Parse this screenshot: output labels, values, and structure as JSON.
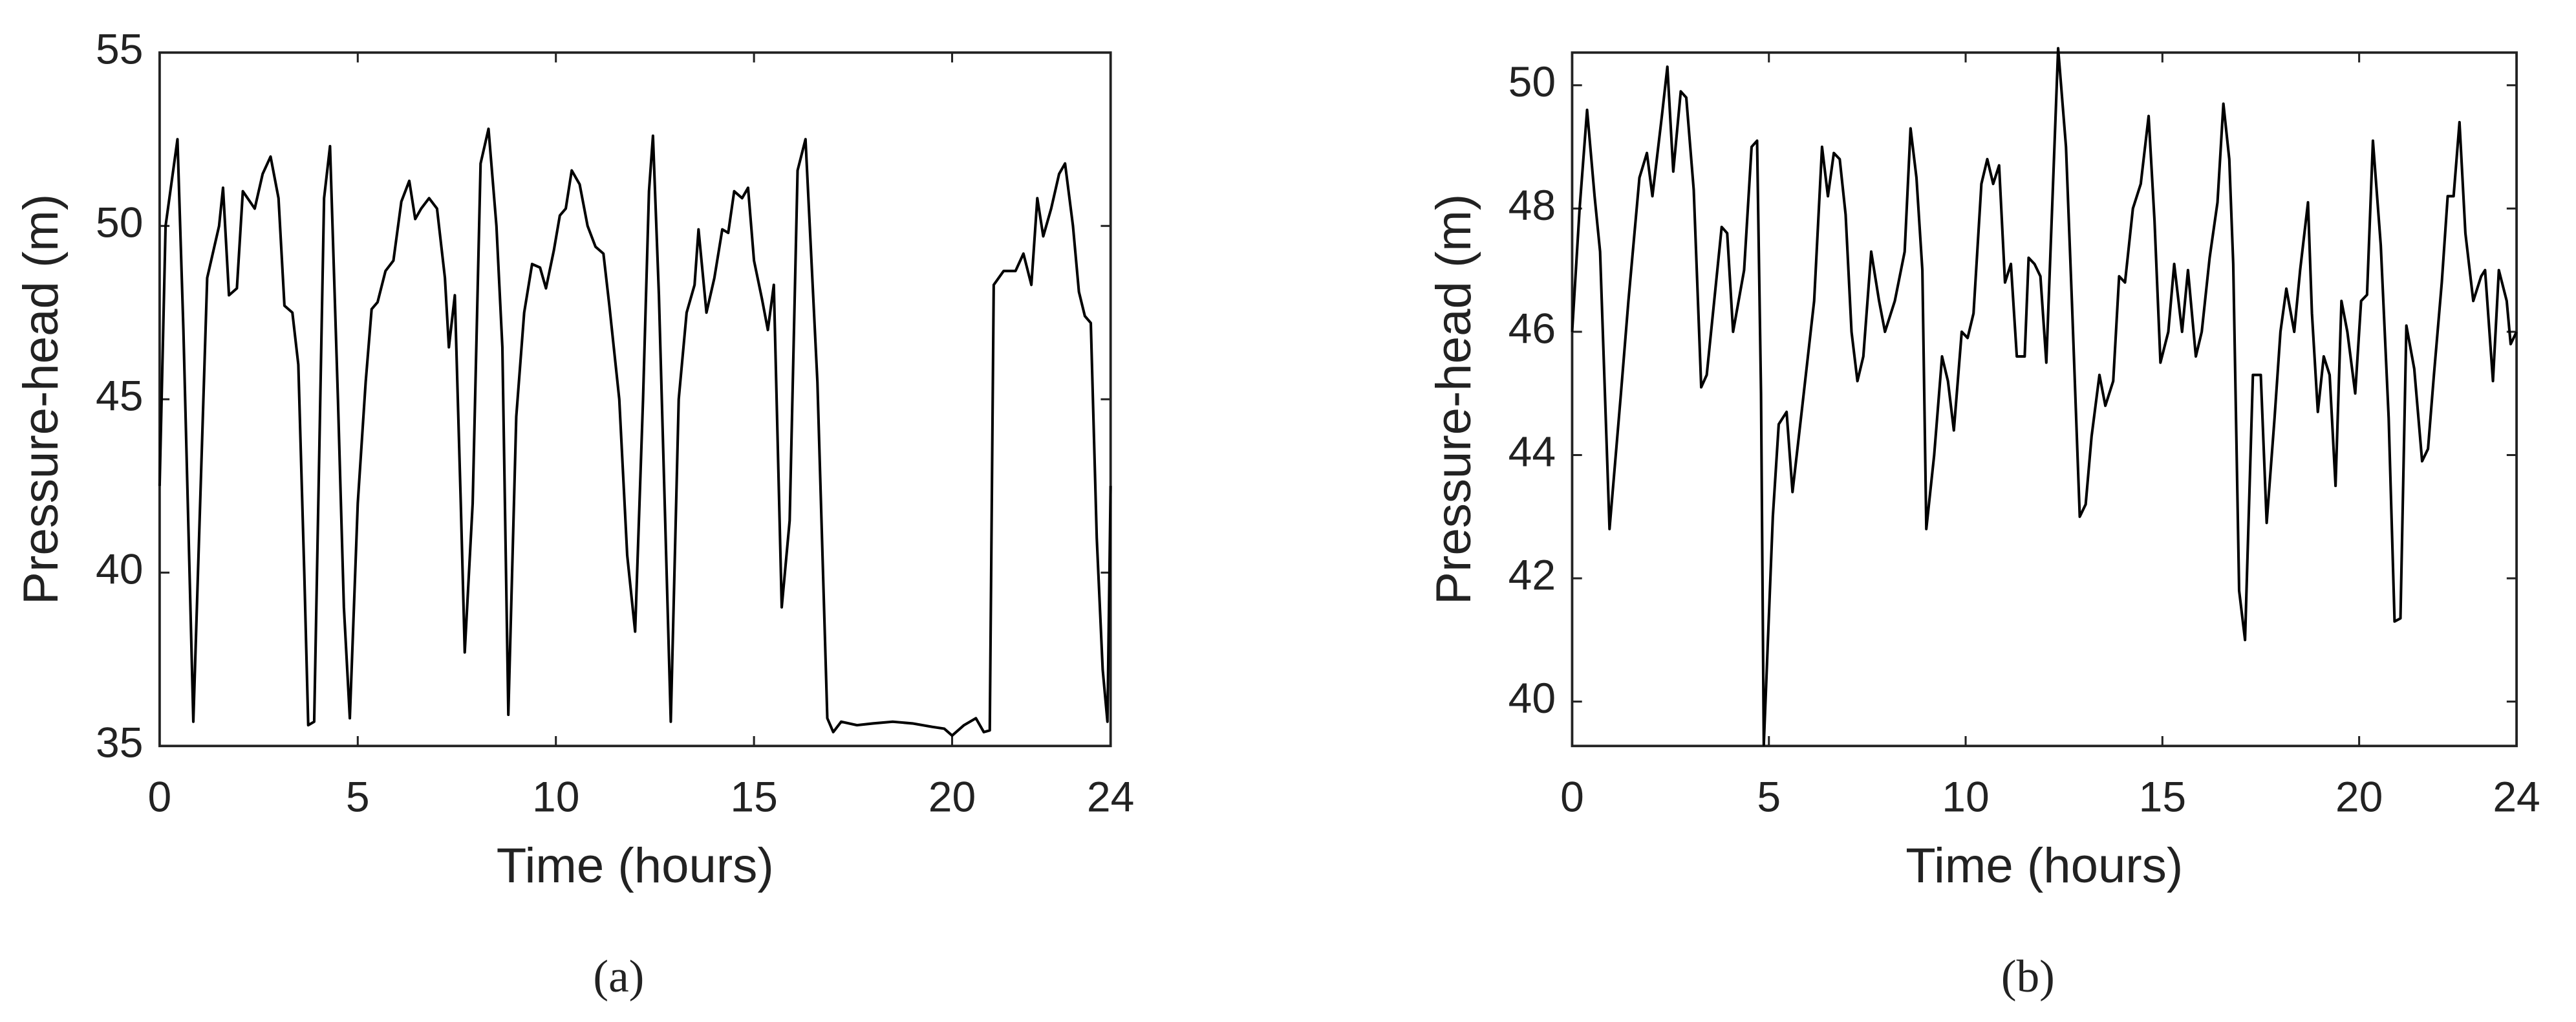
{
  "chart_data": [
    {
      "type": "line",
      "caption": "(a)",
      "xlabel": "Time (hours)",
      "ylabel": "Pressure-head (m)",
      "color": "#000000",
      "xlim": [
        0,
        24
      ],
      "xticks": [
        0,
        5,
        10,
        15,
        20,
        24
      ],
      "ylim": [
        35,
        55
      ],
      "yticks": [
        35,
        40,
        45,
        50,
        55
      ],
      "x": [
        0,
        0.15,
        0.45,
        0.6,
        0.85,
        1.2,
        1.5,
        1.6,
        1.75,
        1.95,
        2.1,
        2.4,
        2.6,
        2.8,
        3.0,
        3.15,
        3.35,
        3.5,
        3.65,
        3.75,
        3.9,
        4.15,
        4.3,
        4.5,
        4.65,
        4.8,
        5.0,
        5.2,
        5.35,
        5.5,
        5.7,
        5.9,
        6.1,
        6.3,
        6.45,
        6.6,
        6.8,
        7.0,
        7.2,
        7.3,
        7.45,
        7.6,
        7.7,
        7.9,
        8.1,
        8.3,
        8.5,
        8.65,
        8.8,
        9.0,
        9.2,
        9.4,
        9.6,
        9.75,
        9.95,
        10.1,
        10.25,
        10.4,
        10.6,
        10.8,
        11.0,
        11.2,
        11.35,
        11.6,
        11.8,
        12.0,
        12.2,
        12.35,
        12.45,
        12.6,
        12.9,
        13.1,
        13.3,
        13.5,
        13.6,
        13.8,
        14.0,
        14.2,
        14.35,
        14.5,
        14.7,
        14.85,
        15.0,
        15.2,
        15.35,
        15.5,
        15.7,
        15.9,
        16.1,
        16.3,
        16.6,
        16.85,
        17.0,
        17.2,
        17.6,
        18.0,
        18.5,
        19.0,
        19.5,
        19.8,
        20.0,
        20.3,
        20.6,
        20.8,
        20.95,
        21.05,
        21.3,
        21.6,
        21.8,
        22.0,
        22.15,
        22.3,
        22.5,
        22.7,
        22.85,
        23.05,
        23.2,
        23.35,
        23.5,
        23.65,
        23.8,
        23.92,
        24
      ],
      "values": [
        42.5,
        50,
        52.5,
        47,
        35.7,
        48.5,
        50,
        51.1,
        48,
        48.2,
        51,
        50.5,
        51.5,
        52,
        50.8,
        47.7,
        47.5,
        46,
        40,
        35.6,
        35.7,
        50.8,
        52.3,
        45,
        39,
        35.8,
        42,
        45.5,
        47.6,
        47.8,
        48.7,
        49,
        50.7,
        51.3,
        50.2,
        50.5,
        50.8,
        50.5,
        48.5,
        46.5,
        48,
        42,
        37.7,
        42,
        51.8,
        52.8,
        50,
        46.5,
        35.9,
        44.5,
        47.5,
        48.9,
        48.8,
        48.2,
        49.3,
        50.3,
        50.5,
        51.6,
        51.2,
        50,
        49.4,
        49.2,
        47.7,
        45,
        40.5,
        38.3,
        45,
        51,
        52.6,
        48,
        35.7,
        45,
        47.5,
        48.3,
        49.9,
        47.5,
        48.5,
        49.9,
        49.8,
        51,
        50.8,
        51.1,
        49,
        47.9,
        47,
        48.3,
        39,
        41.5,
        51.6,
        52.5,
        45.5,
        35.8,
        35.4,
        35.7,
        35.6,
        35.65,
        35.7,
        35.65,
        35.55,
        35.5,
        35.3,
        35.6,
        35.8,
        35.4,
        35.45,
        48.3,
        48.7,
        48.7,
        49.2,
        48.3,
        50.8,
        49.7,
        50.5,
        51.5,
        51.8,
        50,
        48.1,
        47.4,
        47.2,
        41,
        37.2,
        35.7,
        42.5
      ]
    },
    {
      "type": "line",
      "caption": "(b)",
      "xlabel": "Time (hours)",
      "ylabel": "Pressure-head (m)",
      "color": "#000000",
      "xlim": [
        0,
        24
      ],
      "xticks": [
        0,
        5,
        10,
        15,
        20,
        24
      ],
      "ylim": [
        39.28,
        50.53
      ],
      "yticks": [
        40,
        42,
        44,
        46,
        48,
        50
      ],
      "x": [
        0,
        0.19,
        0.38,
        0.57,
        0.71,
        0.95,
        1.24,
        1.43,
        1.71,
        1.9,
        2.04,
        2.28,
        2.42,
        2.57,
        2.76,
        2.9,
        3.09,
        3.28,
        3.42,
        3.61,
        3.8,
        3.94,
        4.09,
        4.37,
        4.56,
        4.7,
        4.8,
        4.87,
        5.1,
        5.25,
        5.45,
        5.6,
        5.85,
        6.15,
        6.35,
        6.5,
        6.65,
        6.8,
        6.95,
        7.1,
        7.25,
        7.4,
        7.6,
        7.8,
        7.95,
        8.2,
        8.45,
        8.6,
        8.75,
        8.9,
        9.0,
        9.2,
        9.4,
        9.55,
        9.7,
        9.9,
        10.05,
        10.2,
        10.4,
        10.55,
        10.7,
        10.85,
        11.0,
        11.15,
        11.3,
        11.5,
        11.6,
        11.75,
        11.9,
        12.05,
        12.35,
        12.55,
        12.7,
        12.9,
        13.05,
        13.2,
        13.4,
        13.55,
        13.75,
        13.9,
        14.05,
        14.25,
        14.45,
        14.65,
        14.8,
        14.95,
        15.15,
        15.3,
        15.5,
        15.65,
        15.85,
        16.0,
        16.2,
        16.4,
        16.55,
        16.7,
        16.8,
        16.95,
        17.1,
        17.3,
        17.5,
        17.65,
        17.85,
        18.0,
        18.15,
        18.35,
        18.5,
        18.7,
        18.8,
        18.95,
        19.1,
        19.25,
        19.4,
        19.55,
        19.7,
        19.9,
        20.05,
        20.2,
        20.35,
        20.55,
        20.75,
        20.9,
        21.05,
        21.2,
        21.4,
        21.6,
        21.75,
        21.9,
        22.1,
        22.25,
        22.4,
        22.55,
        22.7,
        22.9,
        23.1,
        23.2,
        23.4,
        23.55,
        23.75,
        23.85,
        24
      ],
      "values": [
        46,
        48,
        49.6,
        48.2,
        47.3,
        42.8,
        45,
        46.5,
        48.5,
        48.9,
        48.2,
        49.5,
        50.3,
        48.6,
        49.9,
        49.8,
        48.3,
        45.1,
        45.3,
        46.5,
        47.7,
        47.6,
        46,
        47,
        49,
        49.1,
        45,
        39.3,
        43,
        44.5,
        44.7,
        43.4,
        44.8,
        46.5,
        49,
        48.2,
        48.9,
        48.8,
        47.9,
        46,
        45.2,
        45.6,
        47.3,
        46.5,
        46,
        46.5,
        47.3,
        49.3,
        48.5,
        47,
        42.8,
        44,
        45.6,
        45.2,
        44.4,
        46,
        45.9,
        46.3,
        48.4,
        48.8,
        48.4,
        48.7,
        46.8,
        47.1,
        45.6,
        45.6,
        47.2,
        47.1,
        46.9,
        45.5,
        50.6,
        49,
        46.5,
        43,
        43.2,
        44.3,
        45.3,
        44.8,
        45.2,
        46.9,
        46.8,
        48,
        48.4,
        49.5,
        47.8,
        45.5,
        46,
        47.1,
        46,
        47,
        45.6,
        46,
        47.2,
        48.1,
        49.7,
        48.8,
        47.1,
        41.8,
        41,
        45.3,
        45.3,
        42.9,
        44.6,
        46,
        46.7,
        46,
        47,
        48.1,
        46.3,
        44.7,
        45.6,
        45.3,
        43.5,
        46.5,
        46,
        45,
        46.5,
        46.6,
        49.1,
        47.4,
        44.6,
        41.3,
        41.35,
        46.1,
        45.4,
        43.9,
        44.1,
        45.3,
        46.8,
        48.2,
        48.2,
        49.4,
        47.6,
        46.5,
        46.9,
        47,
        45.2,
        47,
        46.5,
        45.8,
        46
      ]
    }
  ]
}
